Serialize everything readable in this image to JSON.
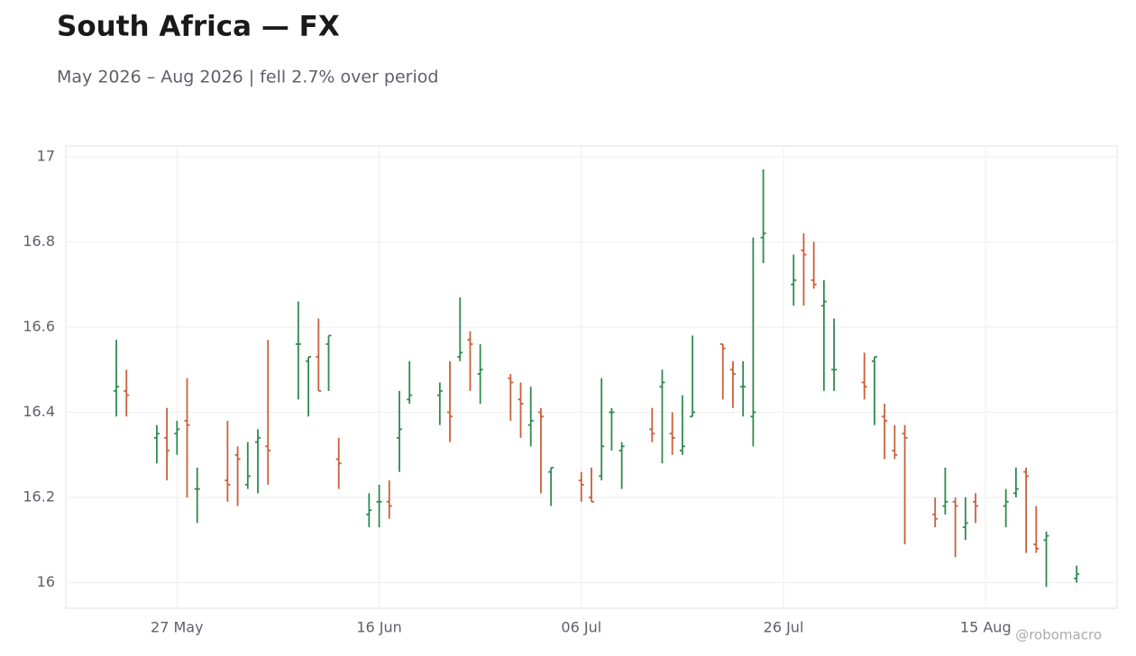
{
  "chart_data": {
    "type": "ohlc",
    "title": "South Africa — FX",
    "subtitle": "May 2026 – Aug 2026 | fell 2.7% over period",
    "watermark": "@robomacro",
    "up_color": "#2e8b4f",
    "down_color": "#c8613a",
    "grid": true,
    "ylim": [
      15.94,
      17.025
    ],
    "yticks": [
      16,
      16.2,
      16.4,
      16.6,
      16.8,
      17
    ],
    "xlim": [
      "2026-05-16",
      "2026-08-28"
    ],
    "xticks": [
      {
        "value": "2026-05-27",
        "label": "27 May"
      },
      {
        "value": "2026-06-16",
        "label": "16 Jun"
      },
      {
        "value": "2026-07-06",
        "label": "06 Jul"
      },
      {
        "value": "2026-07-26",
        "label": "26 Jul"
      },
      {
        "value": "2026-08-15",
        "label": "15 Aug"
      }
    ],
    "x": [
      "2026-05-21",
      "2026-05-22",
      "2026-05-25",
      "2026-05-26",
      "2026-05-27",
      "2026-05-28",
      "2026-05-29",
      "2026-06-01",
      "2026-06-02",
      "2026-06-03",
      "2026-06-04",
      "2026-06-05",
      "2026-06-08",
      "2026-06-09",
      "2026-06-10",
      "2026-06-11",
      "2026-06-12",
      "2026-06-15",
      "2026-06-16",
      "2026-06-17",
      "2026-06-18",
      "2026-06-19",
      "2026-06-22",
      "2026-06-23",
      "2026-06-24",
      "2026-06-25",
      "2026-06-26",
      "2026-06-29",
      "2026-06-30",
      "2026-07-01",
      "2026-07-02",
      "2026-07-03",
      "2026-07-06",
      "2026-07-07",
      "2026-07-08",
      "2026-07-09",
      "2026-07-10",
      "2026-07-13",
      "2026-07-14",
      "2026-07-15",
      "2026-07-16",
      "2026-07-17",
      "2026-07-20",
      "2026-07-21",
      "2026-07-22",
      "2026-07-23",
      "2026-07-24",
      "2026-07-27",
      "2026-07-28",
      "2026-07-29",
      "2026-07-30",
      "2026-07-31",
      "2026-08-03",
      "2026-08-04",
      "2026-08-05",
      "2026-08-06",
      "2026-08-07",
      "2026-08-10",
      "2026-08-11",
      "2026-08-12",
      "2026-08-13",
      "2026-08-14",
      "2026-08-17",
      "2026-08-18",
      "2026-08-19",
      "2026-08-20",
      "2026-08-21",
      "2026-08-24"
    ],
    "open": [
      16.45,
      16.45,
      16.34,
      16.34,
      16.35,
      16.38,
      16.22,
      16.24,
      16.3,
      16.23,
      16.33,
      16.32,
      16.56,
      16.52,
      16.53,
      16.56,
      16.29,
      16.16,
      16.19,
      16.19,
      16.34,
      16.43,
      16.44,
      16.4,
      16.53,
      16.57,
      16.49,
      16.48,
      16.43,
      16.37,
      16.4,
      16.26,
      16.24,
      16.2,
      16.25,
      16.4,
      16.31,
      16.36,
      16.46,
      16.35,
      16.31,
      16.39,
      16.56,
      16.5,
      16.46,
      16.39,
      16.81,
      16.7,
      16.78,
      16.71,
      16.65,
      16.5,
      16.47,
      16.52,
      16.39,
      16.31,
      16.35,
      16.16,
      16.18,
      16.19,
      16.13,
      16.19,
      16.18,
      16.21,
      16.26,
      16.09,
      16.1,
      16.01
    ],
    "high": [
      16.57,
      16.5,
      16.37,
      16.41,
      16.38,
      16.48,
      16.27,
      16.38,
      16.32,
      16.33,
      16.36,
      16.57,
      16.66,
      16.53,
      16.62,
      16.58,
      16.34,
      16.21,
      16.23,
      16.24,
      16.45,
      16.52,
      16.47,
      16.52,
      16.67,
      16.59,
      16.56,
      16.49,
      16.47,
      16.46,
      16.41,
      16.27,
      16.26,
      16.27,
      16.48,
      16.41,
      16.33,
      16.41,
      16.5,
      16.4,
      16.44,
      16.58,
      16.56,
      16.52,
      16.52,
      16.81,
      16.97,
      16.77,
      16.82,
      16.8,
      16.71,
      16.62,
      16.54,
      16.53,
      16.42,
      16.37,
      16.37,
      16.2,
      16.27,
      16.2,
      16.2,
      16.21,
      16.22,
      16.27,
      16.27,
      16.18,
      16.12,
      16.04
    ],
    "low": [
      16.39,
      16.39,
      16.28,
      16.24,
      16.3,
      16.2,
      16.14,
      16.19,
      16.18,
      16.22,
      16.21,
      16.23,
      16.43,
      16.39,
      16.45,
      16.45,
      16.22,
      16.13,
      16.13,
      16.15,
      16.26,
      16.42,
      16.37,
      16.33,
      16.52,
      16.45,
      16.42,
      16.38,
      16.34,
      16.32,
      16.21,
      16.18,
      16.19,
      16.19,
      16.24,
      16.31,
      16.22,
      16.33,
      16.28,
      16.3,
      16.3,
      16.39,
      16.43,
      16.41,
      16.39,
      16.32,
      16.75,
      16.65,
      16.65,
      16.69,
      16.45,
      16.45,
      16.43,
      16.37,
      16.29,
      16.29,
      16.09,
      16.13,
      16.16,
      16.06,
      16.1,
      16.14,
      16.13,
      16.2,
      16.07,
      16.07,
      15.99,
      16.0
    ],
    "close": [
      16.46,
      16.44,
      16.35,
      16.31,
      16.36,
      16.37,
      16.22,
      16.23,
      16.29,
      16.25,
      16.34,
      16.31,
      16.56,
      16.53,
      16.45,
      16.58,
      16.28,
      16.17,
      16.19,
      16.18,
      16.36,
      16.44,
      16.45,
      16.39,
      16.54,
      16.56,
      16.5,
      16.47,
      16.42,
      16.38,
      16.39,
      16.27,
      16.23,
      16.19,
      16.32,
      16.4,
      16.32,
      16.35,
      16.47,
      16.34,
      16.32,
      16.4,
      16.55,
      16.49,
      16.46,
      16.4,
      16.82,
      16.71,
      16.77,
      16.7,
      16.66,
      16.5,
      16.46,
      16.53,
      16.38,
      16.3,
      16.34,
      16.15,
      16.19,
      16.18,
      16.14,
      16.18,
      16.19,
      16.22,
      16.25,
      16.08,
      16.11,
      16.02
    ]
  }
}
